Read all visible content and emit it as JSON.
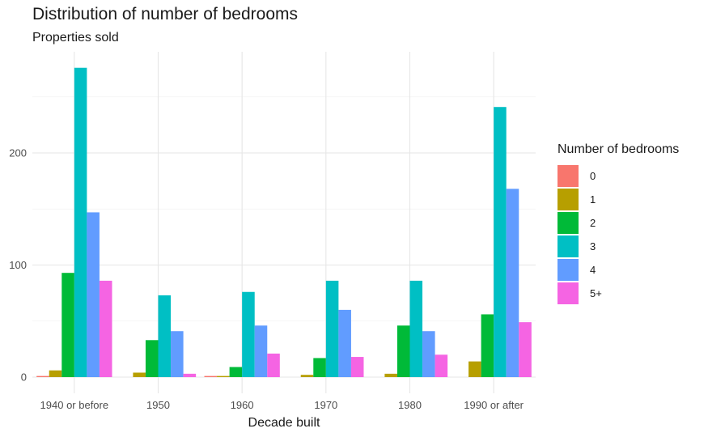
{
  "chart_data": {
    "type": "bar",
    "title": "Distribution of number of bedrooms",
    "subtitle": "Properties sold",
    "xlabel": "Decade built",
    "ylabel": "",
    "categories": [
      "1940 or before",
      "1950",
      "1960",
      "1970",
      "1980",
      "1990 or after"
    ],
    "ylim": [
      0,
      280
    ],
    "yticks": [
      0,
      100,
      200
    ],
    "grid": true,
    "legend_title": "Number of bedrooms",
    "legend_position": "right",
    "series": [
      {
        "name": "0",
        "color": "#F8766D",
        "values": [
          1,
          null,
          1,
          null,
          null,
          null
        ]
      },
      {
        "name": "1",
        "color": "#B79F00",
        "values": [
          6,
          4,
          1,
          2,
          3,
          14
        ]
      },
      {
        "name": "2",
        "color": "#00BA38",
        "values": [
          93,
          33,
          9,
          17,
          46,
          56
        ]
      },
      {
        "name": "3",
        "color": "#00BFC4",
        "values": [
          276,
          73,
          76,
          86,
          86,
          241
        ]
      },
      {
        "name": "4",
        "color": "#619CFF",
        "values": [
          147,
          41,
          46,
          60,
          41,
          168
        ]
      },
      {
        "name": "5+",
        "color": "#F564E3",
        "values": [
          86,
          3,
          21,
          18,
          20,
          49
        ]
      }
    ]
  }
}
